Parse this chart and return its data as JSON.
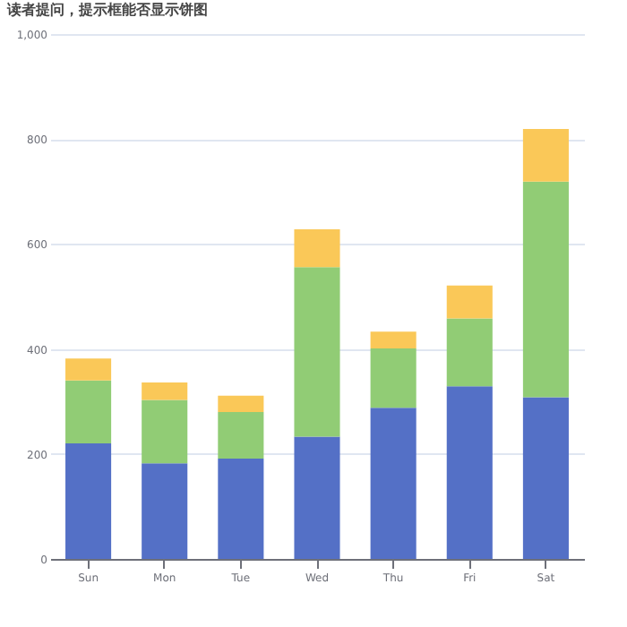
{
  "chart_data": {
    "type": "bar",
    "title": "读者提问，提示框能否显示饼图",
    "stacked": true,
    "categories": [
      "Sun",
      "Mon",
      "Tue",
      "Wed",
      "Thu",
      "Fri",
      "Sat"
    ],
    "series": [
      {
        "color": "#5470c6",
        "values": [
          220,
          182,
          191,
          233,
          288,
          329,
          308
        ]
      },
      {
        "color": "#91cc75",
        "values": [
          120,
          121,
          89,
          323,
          113,
          129,
          411
        ]
      },
      {
        "color": "#fac858",
        "values": [
          42,
          33,
          31,
          72,
          32,
          63,
          100
        ]
      }
    ],
    "ylim": [
      0,
      1000
    ],
    "yticks": [
      0,
      200,
      400,
      600,
      800,
      {
        "value": 1000,
        "label": "1,000"
      }
    ],
    "grid": "y"
  }
}
